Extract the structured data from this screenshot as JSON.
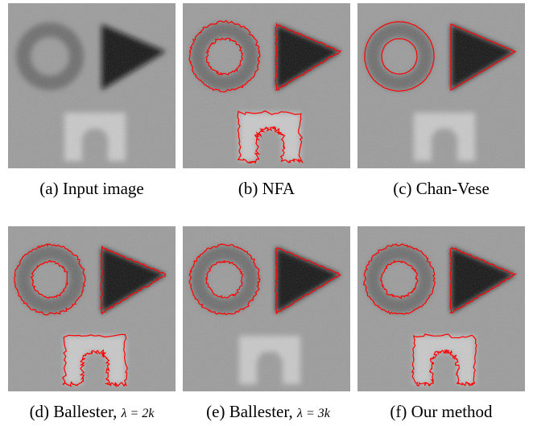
{
  "figure": {
    "panels": [
      {
        "id": "a",
        "caption_prefix": "(a) Input image",
        "caption_math": "",
        "contour": "none",
        "contour_color": "#ff0000"
      },
      {
        "id": "b",
        "caption_prefix": "(b) NFA",
        "caption_math": "",
        "contour": "all-jagged",
        "contour_color": "#ff0000"
      },
      {
        "id": "c",
        "caption_prefix": "(c) Chan-Vese",
        "caption_math": "",
        "contour": "ring-triangle-smooth",
        "contour_color": "#ff0000"
      },
      {
        "id": "d",
        "caption_prefix": "(d) Ballester, ",
        "caption_math": "λ = 2k",
        "contour": "all-jagged",
        "contour_color": "#ff0000"
      },
      {
        "id": "e",
        "caption_prefix": "(e) Ballester, ",
        "caption_math": "λ = 3k",
        "contour": "ring-triangle-jagged",
        "contour_color": "#ff0000"
      },
      {
        "id": "f",
        "caption_prefix": "(f) Our method",
        "caption_math": "",
        "contour": "all-jagged",
        "contour_color": "#ff0000"
      }
    ],
    "colors": {
      "background_gray": "#9a9a9a",
      "ring_gray": "#6a6a6a",
      "triangle_dark": "#111111",
      "arch_light": "#c9c9c9",
      "contour_red": "#ff0000"
    }
  }
}
